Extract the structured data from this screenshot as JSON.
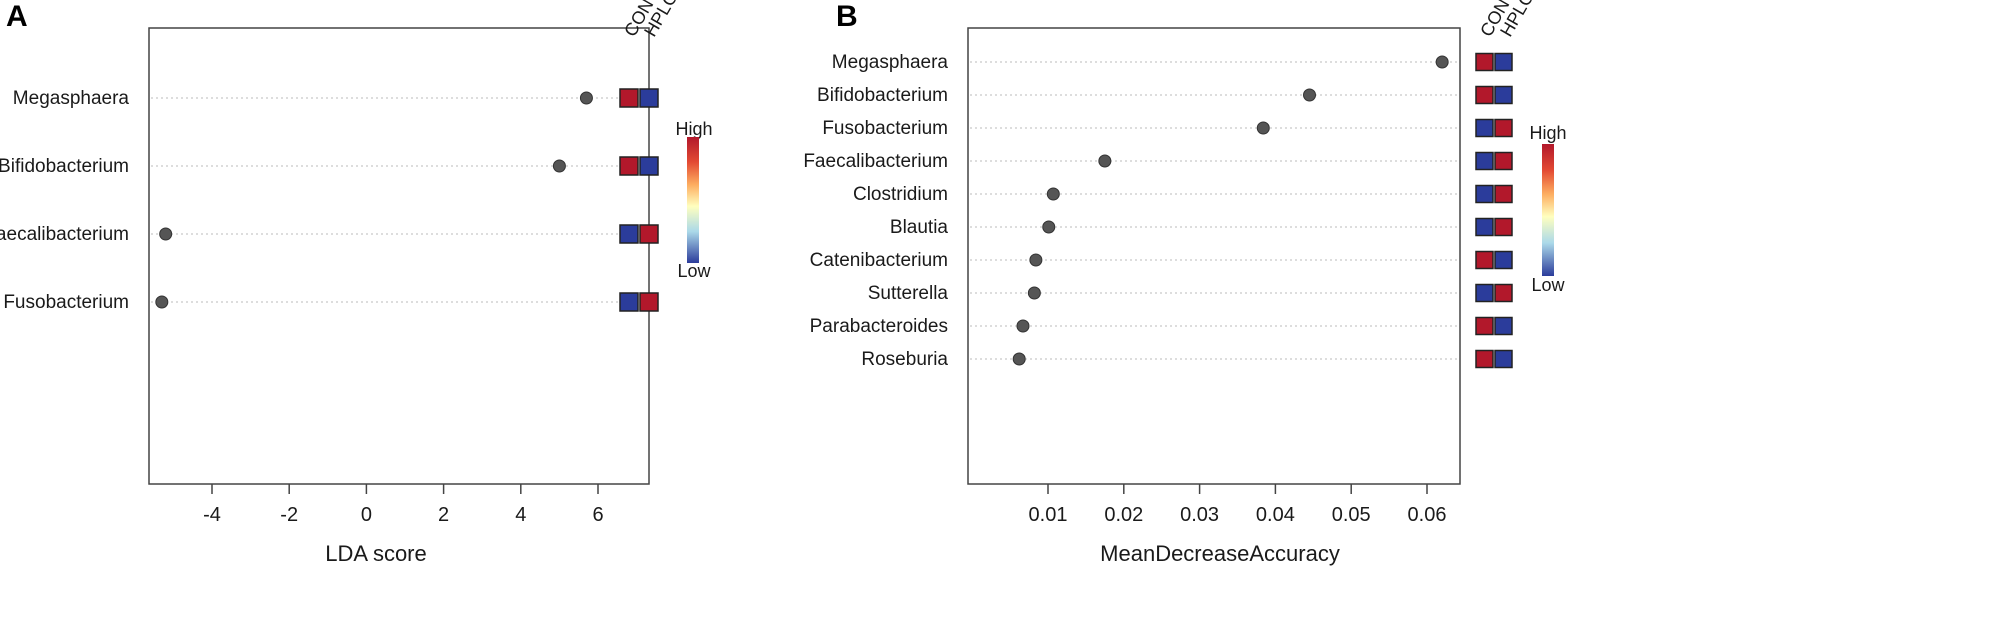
{
  "colors": {
    "high": "#b2182b",
    "low": "#2b3c9b",
    "dot": "#555555",
    "grid": "#bbbbbb"
  },
  "chart_data": [
    {
      "panel": "A",
      "type": "scatter",
      "xlabel": "LDA score",
      "xlim": [
        -5.6,
        6.3
      ],
      "xticks": [
        -4,
        -2,
        0,
        2,
        4,
        6
      ],
      "categories": [
        "Megasphaera",
        "Bifidobacterium",
        "Faecalibacterium",
        "Fusobacterium"
      ],
      "values": [
        5.7,
        5.0,
        -5.2,
        -5.3
      ],
      "groups": [
        "CON",
        "HPLC"
      ],
      "heat": [
        [
          "High",
          "Low"
        ],
        [
          "High",
          "Low"
        ],
        [
          "Low",
          "High"
        ],
        [
          "Low",
          "High"
        ]
      ],
      "legend": {
        "high": "High",
        "low": "Low"
      }
    },
    {
      "panel": "B",
      "type": "scatter",
      "xlabel": "MeanDecreaseAccuracy",
      "xlim": [
        0.0045,
        0.0635
      ],
      "xticks": [
        0.01,
        0.02,
        0.03,
        0.04,
        0.05,
        0.06
      ],
      "tick_labels": [
        "0.01",
        "0.02",
        "0.03",
        "0.04",
        "0.05",
        "0.06"
      ],
      "categories": [
        "Megasphaera",
        "Bifidobacterium",
        "Fusobacterium",
        "Faecalibacterium",
        "Clostridium",
        "Blautia",
        "Catenibacterium",
        "Sutterella",
        "Parabacteroides",
        "Roseburia"
      ],
      "values": [
        0.062,
        0.0445,
        0.0384,
        0.0175,
        0.0107,
        0.0101,
        0.0084,
        0.0082,
        0.0067,
        0.0062
      ],
      "groups": [
        "CON",
        "HPLC"
      ],
      "heat": [
        [
          "High",
          "Low"
        ],
        [
          "High",
          "Low"
        ],
        [
          "Low",
          "High"
        ],
        [
          "Low",
          "High"
        ],
        [
          "Low",
          "High"
        ],
        [
          "Low",
          "High"
        ],
        [
          "High",
          "Low"
        ],
        [
          "Low",
          "High"
        ],
        [
          "High",
          "Low"
        ],
        [
          "High",
          "Low"
        ]
      ],
      "legend": {
        "high": "High",
        "low": "Low"
      }
    }
  ]
}
